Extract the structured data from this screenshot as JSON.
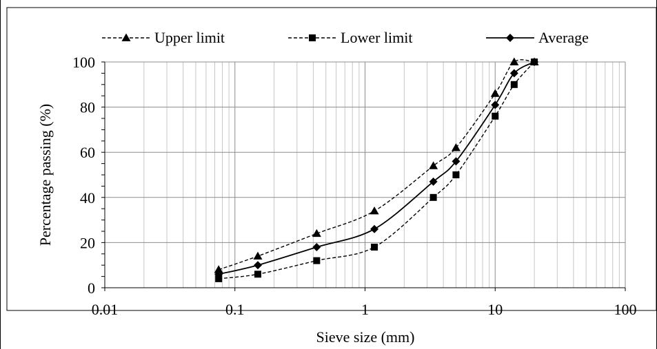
{
  "chart_data": {
    "type": "line",
    "xscale": "log",
    "xlim": [
      0.01,
      100
    ],
    "ylim": [
      0,
      100
    ],
    "xticks": [
      0.01,
      0.1,
      1,
      10,
      100
    ],
    "xtick_labels": [
      "0.01",
      "0.1",
      "1",
      "10",
      "100"
    ],
    "yticks": [
      0,
      20,
      40,
      60,
      80,
      100
    ],
    "ytick_labels": [
      "0",
      "20",
      "40",
      "60",
      "80",
      "100"
    ],
    "xlabel": "Sieve size (mm)",
    "ylabel": "Percentage passing (%)",
    "grid": true,
    "legend_position": "top",
    "series": [
      {
        "name": "Upper limit",
        "style": "dashed",
        "marker": "triangle",
        "color": "#000000",
        "x": [
          0.075,
          0.15,
          0.425,
          1.18,
          3.35,
          5,
          10,
          14,
          20
        ],
        "y": [
          8,
          14,
          24,
          34,
          54,
          62,
          86,
          100,
          100
        ]
      },
      {
        "name": "Lower limit",
        "style": "dashed",
        "marker": "square",
        "color": "#000000",
        "x": [
          0.075,
          0.15,
          0.425,
          1.18,
          3.35,
          5,
          10,
          14,
          20
        ],
        "y": [
          4,
          6,
          12,
          18,
          40,
          50,
          76,
          90,
          100
        ]
      },
      {
        "name": "Average",
        "style": "solid",
        "marker": "diamond",
        "color": "#000000",
        "x": [
          0.075,
          0.15,
          0.425,
          1.18,
          3.35,
          5,
          10,
          14,
          20
        ],
        "y": [
          6,
          10,
          18,
          26,
          47,
          56,
          81,
          95,
          100
        ]
      }
    ]
  }
}
